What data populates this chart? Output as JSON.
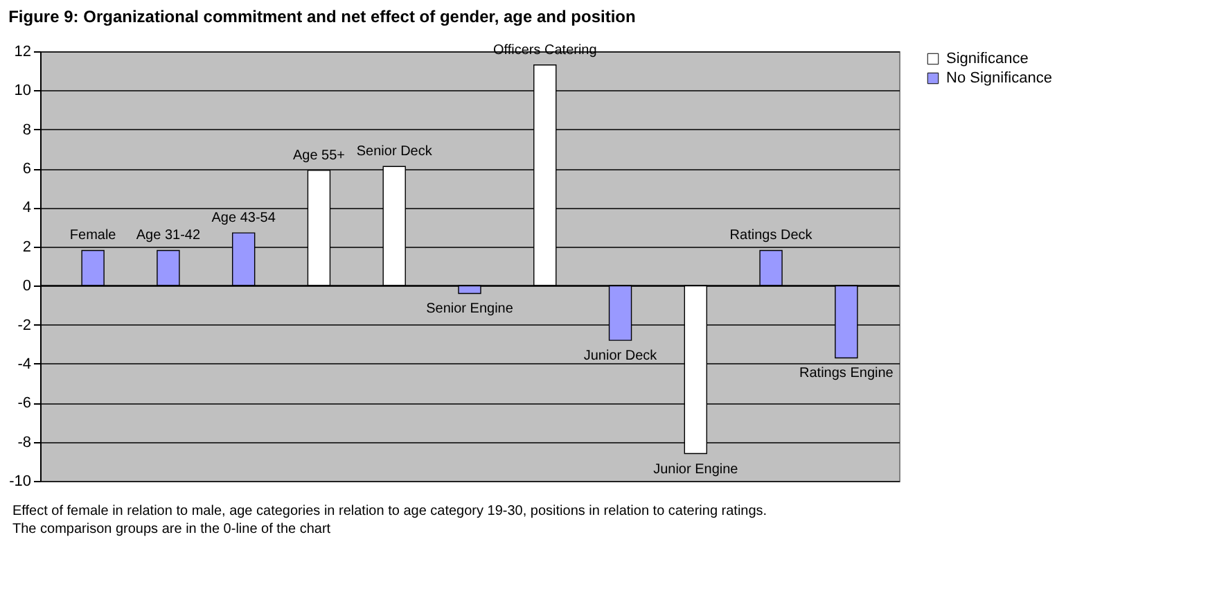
{
  "chart_data": {
    "type": "bar",
    "title": "Figure 9: Organizational commitment and net effect of gender, age and position",
    "categories": [
      "Female",
      "Age 31-42",
      "Age 43-54",
      "Age 55+",
      "Senior Deck",
      "Senior Engine",
      "Officers Catering",
      "Junior Deck",
      "Junior Engine",
      "Ratings Deck",
      "Ratings Engine"
    ],
    "series": [
      {
        "name": "Significance",
        "color": "#ffffff",
        "values": [
          null,
          null,
          null,
          5.9,
          6.1,
          null,
          11.3,
          null,
          -8.6,
          null,
          null
        ]
      },
      {
        "name": "No Significance",
        "color": "#9999ff",
        "values": [
          1.8,
          1.8,
          2.7,
          null,
          null,
          -0.4,
          null,
          -2.8,
          null,
          1.8,
          -3.7
        ]
      }
    ],
    "ylim": [
      -10,
      12
    ],
    "yticks": [
      -10,
      -8,
      -6,
      -4,
      -2,
      0,
      2,
      4,
      6,
      8,
      10,
      12
    ],
    "grid": "y",
    "legend": "right",
    "tick_labels": "y",
    "annotations": [
      "Effect of female in relation to male, age categories in relation to age category 19-30, positions in relation to catering ratings.",
      "The comparison groups are in the 0-line of the chart"
    ]
  }
}
